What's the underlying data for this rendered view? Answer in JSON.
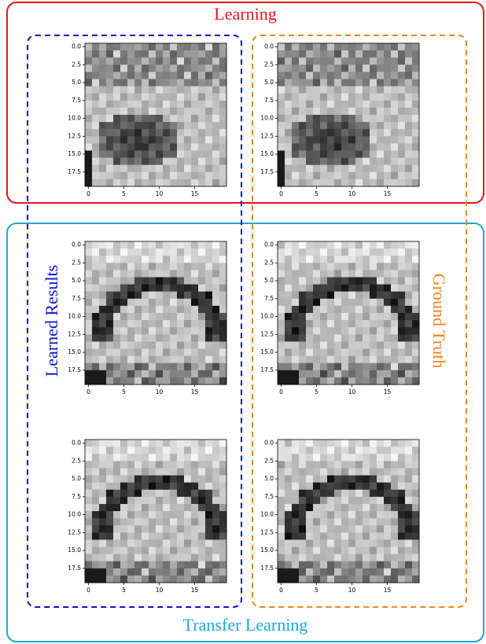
{
  "groups": {
    "learning": "Learning",
    "transfer": "Transfer Learning",
    "learned": "Learned Results",
    "truth": "Ground Truth"
  },
  "axis": {
    "xlim": [
      -0.5,
      19.5
    ],
    "ylim": [
      19.5,
      -0.5
    ],
    "xticks": [
      0,
      5,
      10,
      15
    ],
    "yticks": [
      {
        "value": 0,
        "label": "0.0"
      },
      2.5,
      {
        "value": 5,
        "label": "5.0"
      },
      7.5,
      {
        "value": 10,
        "label": "10.0"
      },
      12.5,
      {
        "value": 15,
        "label": "15.0"
      },
      17.5
    ]
  }
}
